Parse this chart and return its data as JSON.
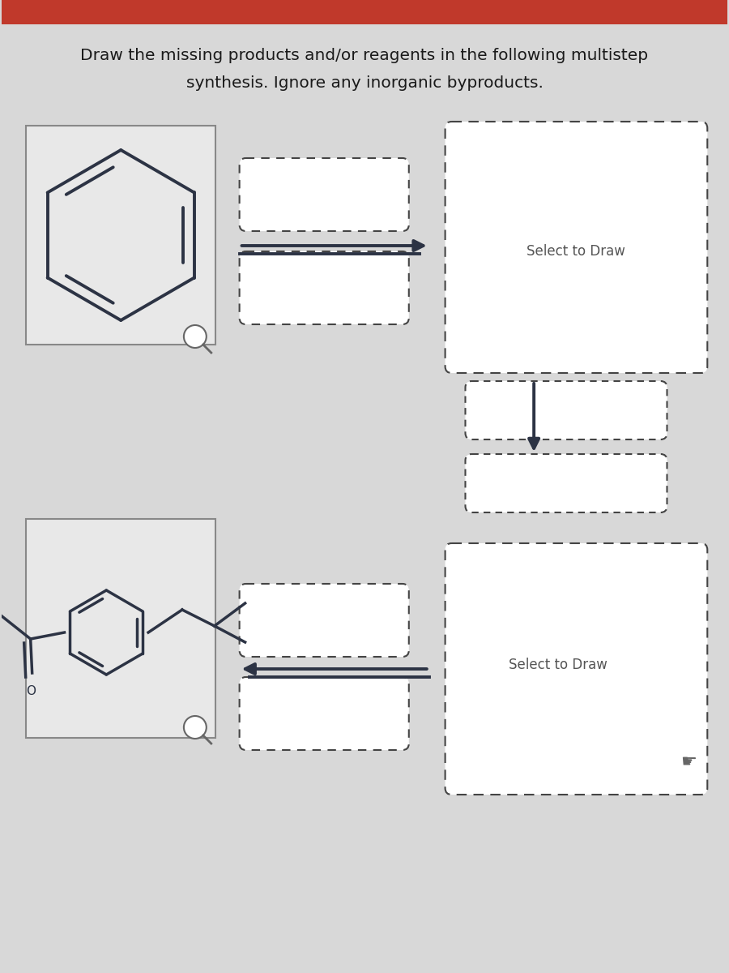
{
  "title_line1": "Draw the missing products and/or reagents in the following multistep",
  "title_line2": "synthesis. Ignore any inorganic byproducts.",
  "title_fontsize": 14.5,
  "bg_color": "#d8d8d8",
  "header_color": "#c0392b",
  "box_dash_color": "#444444",
  "arrow_color": "#2c3344",
  "select_text": "Select to Draw",
  "select_fontsize": 12,
  "mol_box_facecolor": "#e8e8e8",
  "mol_box_edgecolor": "#888888",
  "line_color": "#2c3344"
}
